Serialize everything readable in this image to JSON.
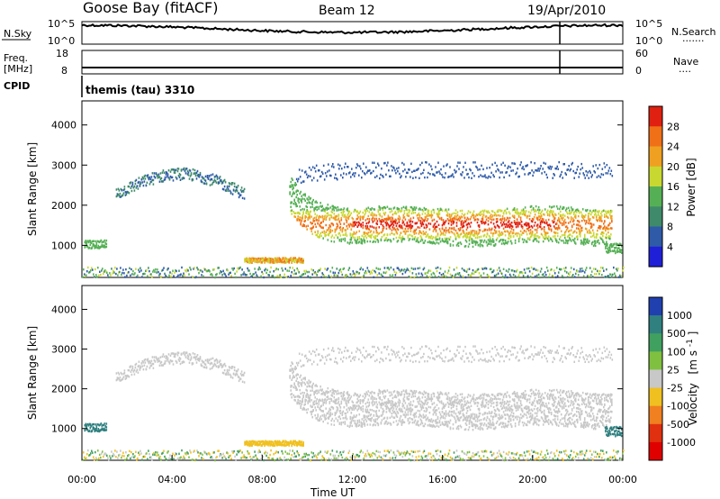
{
  "header": {
    "station": "Goose Bay (fitACF)",
    "beam": "Beam 12",
    "date": "19/Apr/2010"
  },
  "sky_panel": {
    "left_label": "N.Sky",
    "right_label": "N.Search",
    "right_dots": ".......",
    "left_top_tick": "10^5",
    "left_bottom_tick": "10^0",
    "right_top_tick": "10^5",
    "right_bottom_tick": "10^0"
  },
  "freq_panel": {
    "left_label_line1": "Freq.",
    "left_label_line2": "[MHz]",
    "left_top_tick": "18",
    "left_bottom_tick": "8",
    "right_label": "Nave",
    "right_dots": "....",
    "right_top_tick": "60",
    "right_bottom_tick": "0"
  },
  "cpid": {
    "label": "CPID",
    "value": "themis (tau) 3310"
  },
  "chart_data": [
    {
      "type": "heatmap",
      "name": "power",
      "ylabel": "Slant Range [km]",
      "y_ticks": [
        "1000",
        "2000",
        "3000",
        "4000"
      ],
      "y_tick_values": [
        1000,
        2000,
        3000,
        4000
      ],
      "ylim": [
        200,
        4600
      ],
      "xlim_hours": [
        0,
        24
      ],
      "colorbar": {
        "label": "Power [dB]",
        "ticks": [
          "4",
          "8",
          "12",
          "16",
          "20",
          "24",
          "28"
        ],
        "colors": [
          "#1f1fd8",
          "#2e5aa8",
          "#3f8a6a",
          "#55b055",
          "#c8d830",
          "#f0a020",
          "#f07018",
          "#e02010"
        ]
      }
    },
    {
      "type": "heatmap",
      "name": "velocity",
      "ylabel": "Slant Range [km]",
      "y_ticks": [
        "1000",
        "2000",
        "3000",
        "4000"
      ],
      "y_tick_values": [
        1000,
        2000,
        3000,
        4000
      ],
      "ylim": [
        200,
        4600
      ],
      "xlim_hours": [
        0,
        24
      ],
      "colorbar": {
        "label": "Velocity",
        "unit": "[m s",
        "unit_exp": "-1",
        "unit_close": "]",
        "ticks": [
          "1000",
          "500",
          "100",
          "25",
          "-25",
          "-100",
          "-500",
          "-1000"
        ],
        "colors": [
          "#2040b0",
          "#308080",
          "#40a060",
          "#80c040",
          "#c8c8c8",
          "#f0c020",
          "#f08020",
          "#e03010",
          "#e00000"
        ]
      }
    }
  ],
  "x_axis": {
    "ticks": [
      "00:00",
      "04:00",
      "08:00",
      "12:00",
      "16:00",
      "20:00",
      "00:00"
    ],
    "tick_hours": [
      0,
      4,
      8,
      12,
      16,
      20,
      24
    ],
    "label": "Time UT"
  }
}
